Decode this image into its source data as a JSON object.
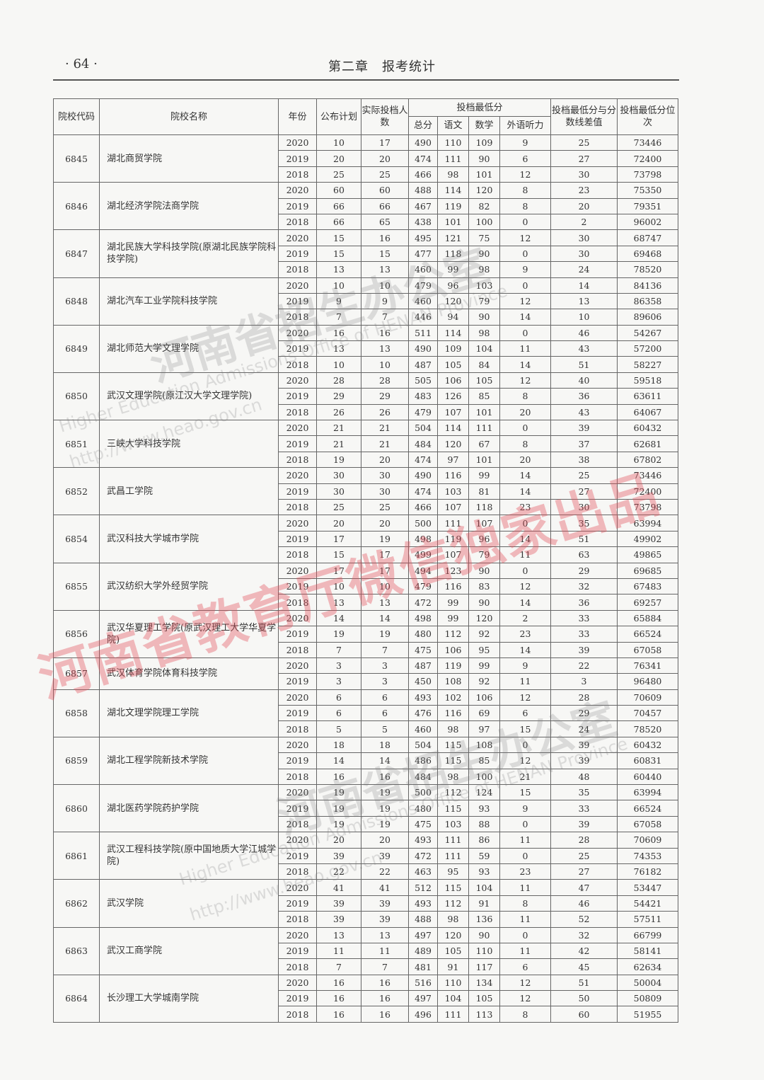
{
  "header": {
    "page_number": "· 64 ·",
    "chapter": "第二章　报考统计"
  },
  "table": {
    "headers": {
      "code": "院校代码",
      "name": "院校名称",
      "year": "年份",
      "plan": "公布计划",
      "actual": "实际投档人数",
      "min_score_group": "投档最低分",
      "total": "总分",
      "chinese": "语文",
      "math": "数学",
      "foreign": "外语听力",
      "diff": "投档最低分与分数线差值",
      "rank": "投档最低分位次"
    },
    "schools": [
      {
        "code": "6845",
        "name": "湖北商贸学院",
        "rows": [
          [
            "2020",
            "10",
            "17",
            "490",
            "110",
            "109",
            "9",
            "25",
            "73446"
          ],
          [
            "2019",
            "20",
            "20",
            "474",
            "111",
            "90",
            "6",
            "27",
            "72400"
          ],
          [
            "2018",
            "25",
            "25",
            "466",
            "98",
            "101",
            "12",
            "30",
            "73798"
          ]
        ]
      },
      {
        "code": "6846",
        "name": "湖北经济学院法商学院",
        "rows": [
          [
            "2020",
            "60",
            "60",
            "488",
            "114",
            "120",
            "8",
            "23",
            "75350"
          ],
          [
            "2019",
            "66",
            "66",
            "467",
            "119",
            "82",
            "8",
            "20",
            "79351"
          ],
          [
            "2018",
            "66",
            "65",
            "438",
            "101",
            "100",
            "0",
            "2",
            "96002"
          ]
        ]
      },
      {
        "code": "6847",
        "name": "湖北民族大学科技学院(原湖北民族学院科技学院)",
        "rows": [
          [
            "2020",
            "15",
            "16",
            "495",
            "121",
            "75",
            "12",
            "30",
            "68747"
          ],
          [
            "2019",
            "15",
            "15",
            "477",
            "118",
            "90",
            "0",
            "30",
            "69468"
          ],
          [
            "2018",
            "13",
            "13",
            "460",
            "99",
            "98",
            "9",
            "24",
            "78520"
          ]
        ]
      },
      {
        "code": "6848",
        "name": "湖北汽车工业学院科技学院",
        "rows": [
          [
            "2020",
            "10",
            "10",
            "479",
            "96",
            "103",
            "0",
            "14",
            "84136"
          ],
          [
            "2019",
            "9",
            "9",
            "460",
            "120",
            "79",
            "12",
            "13",
            "86358"
          ],
          [
            "2018",
            "7",
            "7",
            "446",
            "94",
            "90",
            "14",
            "10",
            "89606"
          ]
        ]
      },
      {
        "code": "6849",
        "name": "湖北师范大学文理学院",
        "rows": [
          [
            "2020",
            "16",
            "16",
            "511",
            "114",
            "98",
            "0",
            "46",
            "54267"
          ],
          [
            "2019",
            "13",
            "13",
            "490",
            "109",
            "104",
            "11",
            "43",
            "57200"
          ],
          [
            "2018",
            "10",
            "10",
            "487",
            "105",
            "84",
            "14",
            "51",
            "58227"
          ]
        ]
      },
      {
        "code": "6850",
        "name": "武汉文理学院(原江汉大学文理学院)",
        "rows": [
          [
            "2020",
            "28",
            "28",
            "505",
            "106",
            "105",
            "12",
            "40",
            "59518"
          ],
          [
            "2019",
            "29",
            "29",
            "483",
            "126",
            "85",
            "8",
            "36",
            "63611"
          ],
          [
            "2018",
            "26",
            "26",
            "479",
            "107",
            "101",
            "20",
            "43",
            "64067"
          ]
        ]
      },
      {
        "code": "6851",
        "name": "三峡大学科技学院",
        "rows": [
          [
            "2020",
            "21",
            "21",
            "504",
            "114",
            "111",
            "0",
            "39",
            "60432"
          ],
          [
            "2019",
            "21",
            "21",
            "484",
            "120",
            "67",
            "8",
            "37",
            "62681"
          ],
          [
            "2018",
            "19",
            "20",
            "474",
            "97",
            "101",
            "20",
            "38",
            "67802"
          ]
        ]
      },
      {
        "code": "6852",
        "name": "武昌工学院",
        "rows": [
          [
            "2020",
            "30",
            "30",
            "490",
            "116",
            "99",
            "14",
            "25",
            "73446"
          ],
          [
            "2019",
            "30",
            "30",
            "474",
            "103",
            "81",
            "14",
            "27",
            "72400"
          ],
          [
            "2018",
            "25",
            "25",
            "466",
            "107",
            "118",
            "23",
            "30",
            "73798"
          ]
        ]
      },
      {
        "code": "6854",
        "name": "武汉科技大学城市学院",
        "rows": [
          [
            "2020",
            "20",
            "20",
            "500",
            "111",
            "107",
            "0",
            "35",
            "63994"
          ],
          [
            "2019",
            "17",
            "19",
            "498",
            "119",
            "96",
            "14",
            "51",
            "49902"
          ],
          [
            "2018",
            "15",
            "17",
            "499",
            "107",
            "79",
            "11",
            "63",
            "49865"
          ]
        ]
      },
      {
        "code": "6855",
        "name": "武汉纺织大学外经贸学院",
        "rows": [
          [
            "2020",
            "17",
            "17",
            "494",
            "123",
            "90",
            "0",
            "29",
            "69685"
          ],
          [
            "2019",
            "10",
            "10",
            "479",
            "116",
            "83",
            "12",
            "32",
            "67483"
          ],
          [
            "2018",
            "13",
            "13",
            "472",
            "99",
            "90",
            "14",
            "36",
            "69257"
          ]
        ]
      },
      {
        "code": "6856",
        "name": "武汉华夏理工学院(原武汉理工大学华夏学院)",
        "rows": [
          [
            "2020",
            "14",
            "14",
            "498",
            "99",
            "120",
            "2",
            "33",
            "65884"
          ],
          [
            "2019",
            "19",
            "19",
            "480",
            "112",
            "92",
            "23",
            "33",
            "66524"
          ],
          [
            "2018",
            "7",
            "7",
            "475",
            "106",
            "95",
            "14",
            "39",
            "67058"
          ]
        ]
      },
      {
        "code": "6857",
        "name": "武汉体育学院体育科技学院",
        "rows": [
          [
            "2020",
            "3",
            "3",
            "487",
            "119",
            "99",
            "9",
            "22",
            "76341"
          ],
          [
            "2019",
            "3",
            "3",
            "450",
            "108",
            "92",
            "11",
            "3",
            "96480"
          ]
        ]
      },
      {
        "code": "6858",
        "name": "湖北文理学院理工学院",
        "rows": [
          [
            "2020",
            "6",
            "6",
            "493",
            "102",
            "106",
            "12",
            "28",
            "70609"
          ],
          [
            "2019",
            "6",
            "6",
            "476",
            "116",
            "69",
            "6",
            "29",
            "70457"
          ],
          [
            "2018",
            "5",
            "5",
            "460",
            "98",
            "97",
            "15",
            "24",
            "78520"
          ]
        ]
      },
      {
        "code": "6859",
        "name": "湖北工程学院新技术学院",
        "rows": [
          [
            "2020",
            "18",
            "18",
            "504",
            "115",
            "108",
            "0",
            "39",
            "60432"
          ],
          [
            "2019",
            "14",
            "14",
            "486",
            "115",
            "85",
            "12",
            "39",
            "60831"
          ],
          [
            "2018",
            "16",
            "16",
            "484",
            "98",
            "100",
            "21",
            "48",
            "60440"
          ]
        ]
      },
      {
        "code": "6860",
        "name": "湖北医药学院药护学院",
        "rows": [
          [
            "2020",
            "19",
            "19",
            "500",
            "112",
            "124",
            "15",
            "35",
            "63994"
          ],
          [
            "2019",
            "19",
            "19",
            "480",
            "115",
            "93",
            "9",
            "33",
            "66524"
          ],
          [
            "2018",
            "19",
            "19",
            "475",
            "103",
            "88",
            "0",
            "39",
            "67058"
          ]
        ]
      },
      {
        "code": "6861",
        "name": "武汉工程科技学院(原中国地质大学江城学院)",
        "rows": [
          [
            "2020",
            "20",
            "20",
            "493",
            "111",
            "86",
            "11",
            "28",
            "70609"
          ],
          [
            "2019",
            "39",
            "39",
            "472",
            "111",
            "59",
            "0",
            "25",
            "74353"
          ],
          [
            "2018",
            "22",
            "22",
            "463",
            "95",
            "93",
            "23",
            "27",
            "76182"
          ]
        ]
      },
      {
        "code": "6862",
        "name": "武汉学院",
        "rows": [
          [
            "2020",
            "41",
            "41",
            "512",
            "115",
            "104",
            "11",
            "47",
            "53447"
          ],
          [
            "2019",
            "39",
            "39",
            "493",
            "112",
            "91",
            "8",
            "46",
            "54421"
          ],
          [
            "2018",
            "39",
            "39",
            "488",
            "98",
            "136",
            "11",
            "52",
            "57511"
          ]
        ]
      },
      {
        "code": "6863",
        "name": "武汉工商学院",
        "rows": [
          [
            "2020",
            "13",
            "13",
            "497",
            "120",
            "90",
            "0",
            "32",
            "66799"
          ],
          [
            "2019",
            "11",
            "11",
            "489",
            "105",
            "110",
            "11",
            "42",
            "58141"
          ],
          [
            "2018",
            "7",
            "7",
            "481",
            "91",
            "117",
            "6",
            "45",
            "62634"
          ]
        ]
      },
      {
        "code": "6864",
        "name": "长沙理工大学城南学院",
        "rows": [
          [
            "2020",
            "16",
            "16",
            "516",
            "110",
            "134",
            "12",
            "51",
            "50004"
          ],
          [
            "2019",
            "16",
            "16",
            "497",
            "104",
            "105",
            "12",
            "50",
            "50809"
          ],
          [
            "2018",
            "16",
            "16",
            "496",
            "111",
            "113",
            "8",
            "60",
            "51955"
          ]
        ]
      }
    ]
  },
  "watermarks": {
    "red": "河南省教育厅微信独家出品",
    "gray": "河南省招生办公室",
    "english": "Higher Education Admissions Office of HENAN Province",
    "url": "http://www.heao.gov.cn"
  }
}
